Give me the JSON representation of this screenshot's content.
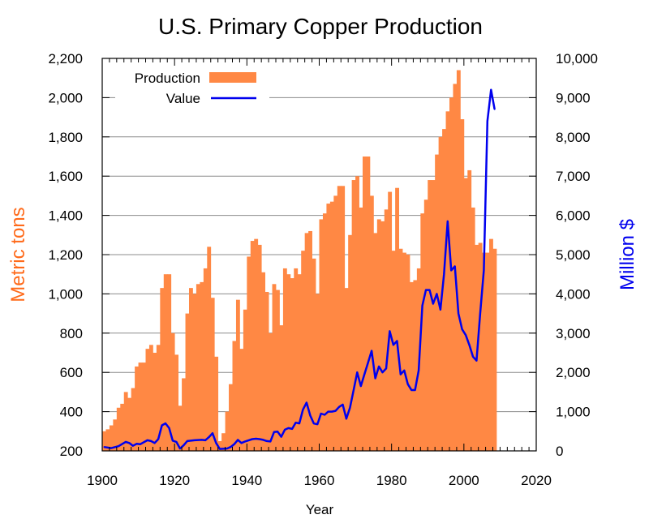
{
  "chart_data": {
    "type": "bar",
    "title": "U.S. Primary Copper Production",
    "xlabel": "Year",
    "ylabel_left": "Metric tons",
    "ylabel_right": "Million $",
    "xlim": [
      1900,
      2020
    ],
    "ylim_left": [
      200,
      2200
    ],
    "ylim_right": [
      0,
      10000
    ],
    "x_ticks": [
      1900,
      1920,
      1940,
      1960,
      1980,
      2000,
      2020
    ],
    "x_tick_labels": [
      "1900",
      "1920",
      "1940",
      "1960",
      "1980",
      "2000",
      "2020"
    ],
    "y_left_ticks": [
      200,
      400,
      600,
      800,
      1000,
      1200,
      1400,
      1600,
      1800,
      2000,
      2200
    ],
    "y_left_tick_labels": [
      "200",
      "400",
      "600",
      "800",
      "1,000",
      "1,200",
      "1,400",
      "1,600",
      "1,800",
      "2,000",
      "2,200"
    ],
    "y_right_ticks": [
      0,
      1000,
      2000,
      3000,
      4000,
      5000,
      6000,
      7000,
      8000,
      9000,
      10000
    ],
    "y_right_tick_labels": [
      "0",
      "1,000",
      "2,000",
      "3,000",
      "4,000",
      "5,000",
      "6,000",
      "7,000",
      "8,000",
      "9,000",
      "10,000"
    ],
    "grid": "horizontal",
    "legend_position": "top-left",
    "series": [
      {
        "name": "Production",
        "kind": "bar",
        "axis": "left",
        "color": "#ff8844",
        "x": [
          1900,
          1901,
          1902,
          1903,
          1904,
          1905,
          1906,
          1907,
          1908,
          1909,
          1910,
          1911,
          1912,
          1913,
          1914,
          1915,
          1916,
          1917,
          1918,
          1919,
          1920,
          1921,
          1922,
          1923,
          1924,
          1925,
          1926,
          1927,
          1928,
          1929,
          1930,
          1931,
          1932,
          1933,
          1934,
          1935,
          1936,
          1937,
          1938,
          1939,
          1940,
          1941,
          1942,
          1943,
          1944,
          1945,
          1946,
          1947,
          1948,
          1949,
          1950,
          1951,
          1952,
          1953,
          1954,
          1955,
          1956,
          1957,
          1958,
          1959,
          1960,
          1961,
          1962,
          1963,
          1964,
          1965,
          1966,
          1967,
          1968,
          1969,
          1970,
          1971,
          1972,
          1973,
          1974,
          1975,
          1976,
          1977,
          1978,
          1979,
          1980,
          1981,
          1982,
          1983,
          1984,
          1985,
          1986,
          1987,
          1988,
          1989,
          1990,
          1991,
          1992,
          1993,
          1994,
          1995,
          1996,
          1997,
          1998,
          1999,
          2000,
          2001,
          2002,
          2003,
          2004,
          2005,
          2006,
          2007,
          2008
        ],
        "values": [
          300,
          310,
          330,
          360,
          420,
          440,
          500,
          470,
          520,
          630,
          650,
          650,
          720,
          740,
          700,
          740,
          1030,
          1100,
          1100,
          800,
          690,
          430,
          570,
          900,
          1030,
          1000,
          1050,
          1060,
          1130,
          1240,
          980,
          680,
          250,
          290,
          400,
          540,
          760,
          970,
          720,
          920,
          1190,
          1270,
          1280,
          1250,
          1110,
          1010,
          800,
          1050,
          1020,
          840,
          1130,
          1100,
          1080,
          1130,
          1100,
          1220,
          1310,
          1320,
          1180,
          1000,
          1380,
          1410,
          1460,
          1470,
          1500,
          1550,
          1550,
          1030,
          1300,
          1580,
          1600,
          1440,
          1700,
          1700,
          1500,
          1310,
          1380,
          1370,
          1430,
          1520,
          1220,
          1540,
          1230,
          1210,
          1200,
          1060,
          1070,
          1130,
          1410,
          1480,
          1580,
          1580,
          1710,
          1800,
          1840,
          1930,
          2000,
          2070,
          2140,
          1890,
          1590,
          1630,
          1440,
          1250,
          1260,
          1210,
          1210,
          1280,
          1230
        ]
      },
      {
        "name": "Value",
        "kind": "line",
        "axis": "right",
        "color": "#0000ee",
        "x": [
          1900,
          1902,
          1904,
          1906,
          1907,
          1908,
          1909,
          1910,
          1912,
          1913,
          1914,
          1915,
          1916,
          1917,
          1918,
          1919,
          1920,
          1921,
          1922,
          1923,
          1925,
          1927,
          1928,
          1929,
          1930,
          1931,
          1932,
          1934,
          1935,
          1936,
          1937,
          1938,
          1939,
          1941,
          1942,
          1943,
          1944,
          1945,
          1946,
          1947,
          1948,
          1949,
          1950,
          1951,
          1952,
          1953,
          1954,
          1955,
          1956,
          1957,
          1958,
          1959,
          1960,
          1961,
          1962,
          1963,
          1964,
          1965,
          1966,
          1967,
          1968,
          1969,
          1970,
          1971,
          1972,
          1973,
          1974,
          1975,
          1976,
          1977,
          1978,
          1979,
          1980,
          1981,
          1982,
          1983,
          1984,
          1985,
          1986,
          1987,
          1988,
          1989,
          1990,
          1991,
          1992,
          1993,
          1994,
          1995,
          1996,
          1997,
          1998,
          1999,
          2000,
          2001,
          2002,
          2003,
          2004,
          2005,
          2006,
          2007,
          2008
        ],
        "values": [
          100,
          70,
          120,
          230,
          200,
          130,
          180,
          170,
          270,
          250,
          200,
          300,
          650,
          700,
          580,
          260,
          230,
          60,
          140,
          250,
          270,
          280,
          270,
          350,
          450,
          200,
          50,
          60,
          100,
          170,
          280,
          200,
          240,
          300,
          310,
          300,
          280,
          250,
          240,
          480,
          490,
          360,
          540,
          580,
          560,
          720,
          700,
          1050,
          1230,
          900,
          700,
          680,
          950,
          920,
          1000,
          1000,
          1020,
          1120,
          1180,
          820,
          1100,
          1550,
          2000,
          1650,
          1950,
          2250,
          2550,
          1850,
          2150,
          2000,
          2100,
          3050,
          2700,
          2800,
          1950,
          2050,
          1700,
          1550,
          1550,
          2050,
          3700,
          4100,
          4100,
          3750,
          4000,
          3600,
          4500,
          5850,
          4600,
          4700,
          3500,
          3100,
          2950,
          2700,
          2400,
          2300,
          3500,
          4600,
          8400,
          9200,
          8700
        ]
      }
    ]
  }
}
